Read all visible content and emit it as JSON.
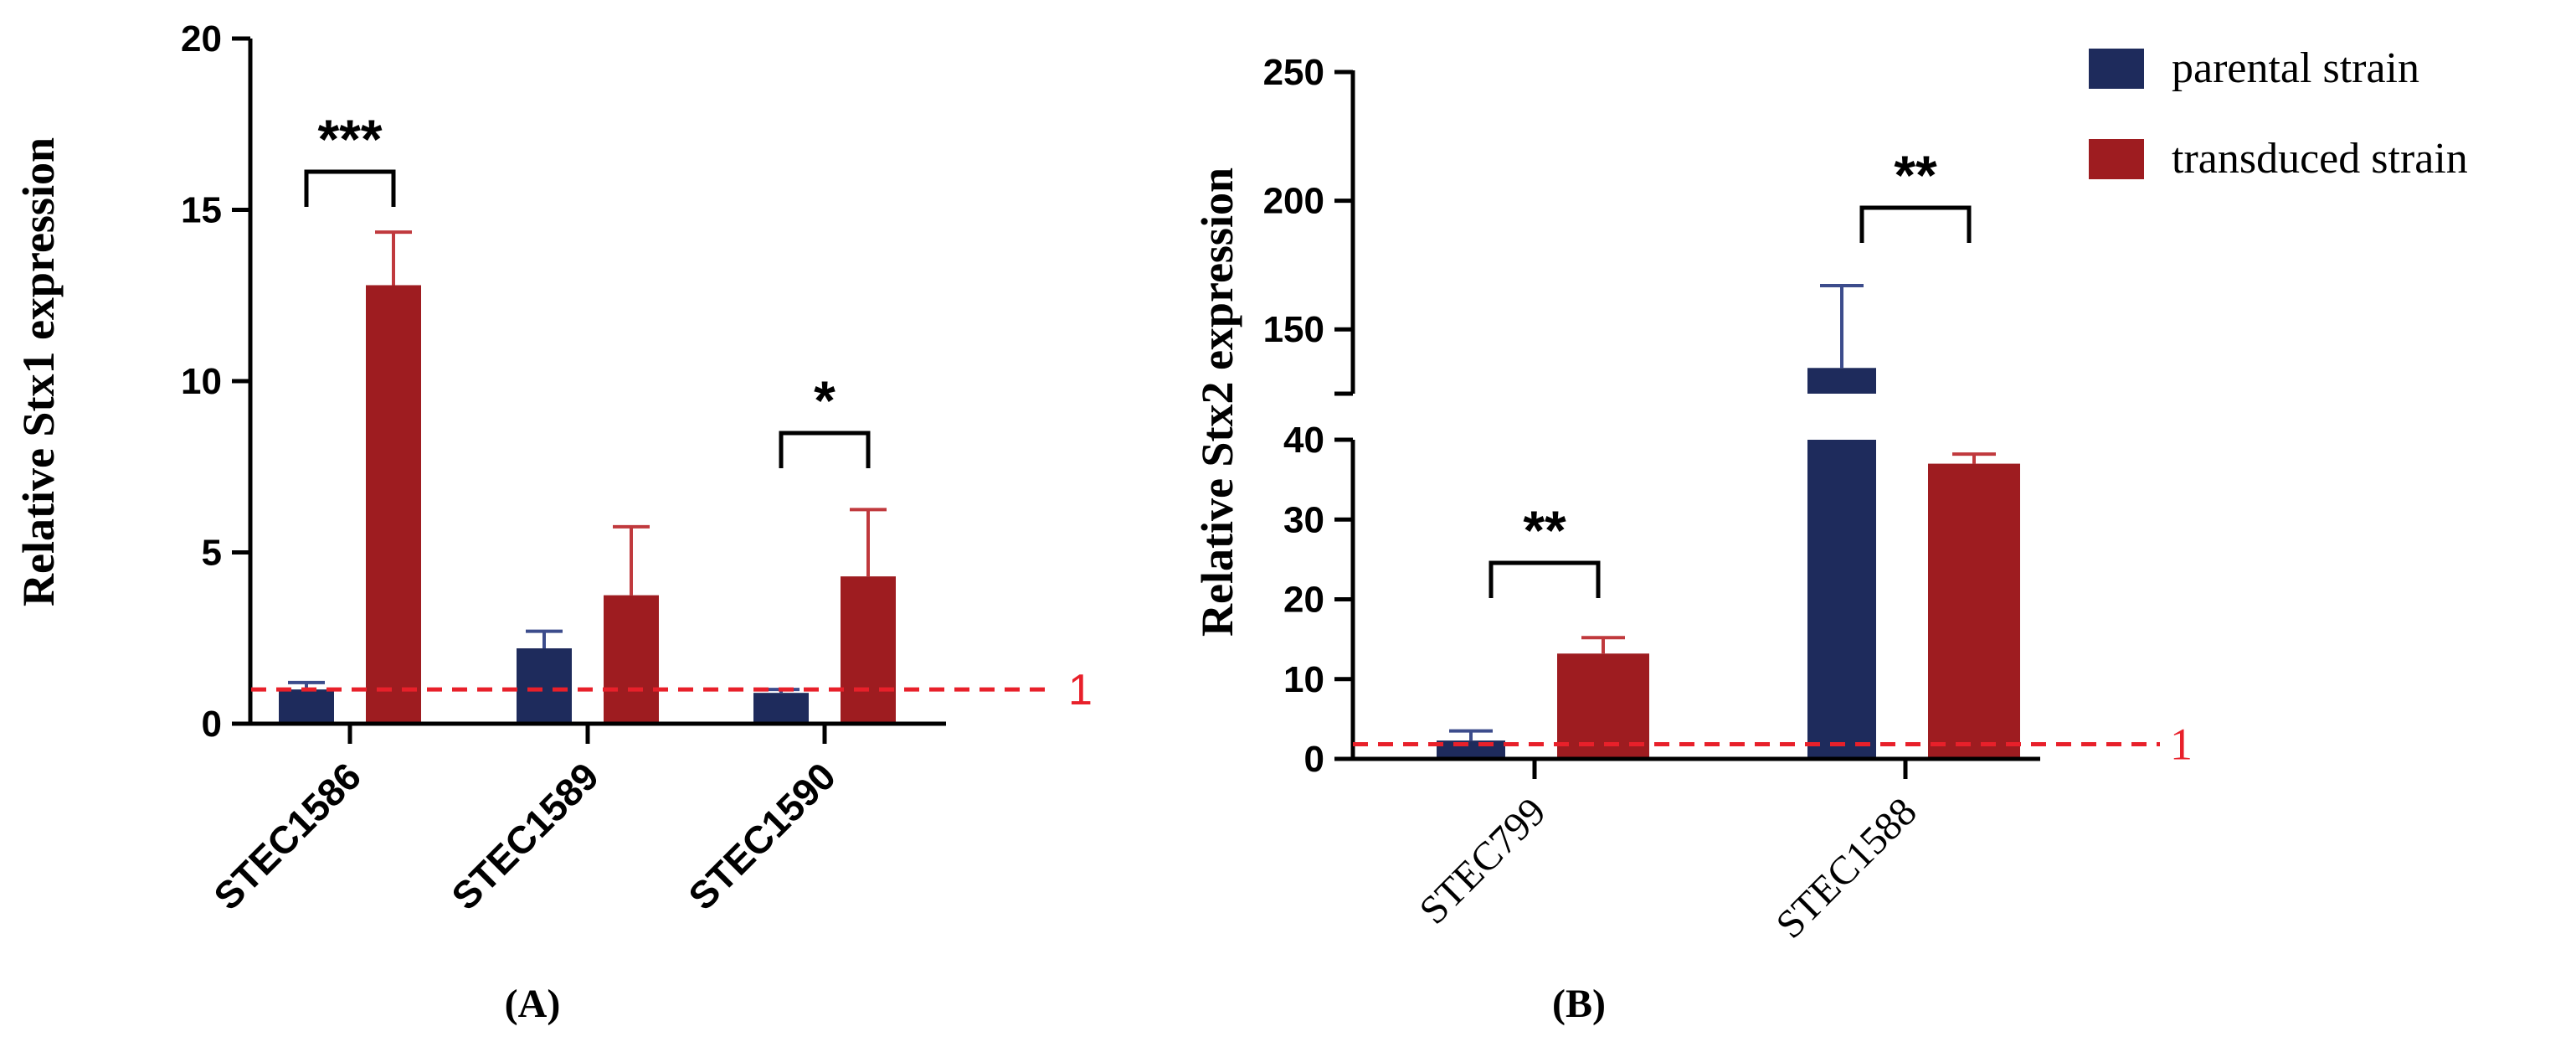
{
  "colors": {
    "parental": "#1e2b5c",
    "transduced": "#9e1c20",
    "parental_err": "#3c4c8c",
    "transduced_err": "#c0393d",
    "reference": "#e8202a"
  },
  "legend": {
    "items": [
      {
        "label": "parental strain",
        "color_key": "parental"
      },
      {
        "label": "transduced strain",
        "color_key": "transduced"
      }
    ]
  },
  "chart_data": [
    {
      "panel": "(A)",
      "type": "bar",
      "ylabel": "Relative Stx1 expression",
      "xlabel": "",
      "ylim": [
        0,
        20
      ],
      "yticks": [
        "0",
        "5",
        "10",
        "15",
        "20"
      ],
      "categories": [
        "STEC1586",
        "STEC1589",
        "STEC1590"
      ],
      "series": [
        {
          "name": "parental strain",
          "values": [
            1.0,
            2.2,
            0.9
          ],
          "errors": [
            0.2,
            0.5,
            0.1
          ]
        },
        {
          "name": "transduced strain",
          "values": [
            12.8,
            3.75,
            4.3
          ],
          "errors": [
            1.55,
            2.0,
            1.95
          ]
        }
      ],
      "reference_line": {
        "value": 1,
        "label": "1"
      },
      "significance": [
        {
          "category_index": 0,
          "label": "***"
        },
        {
          "category_index": 2,
          "label": "*"
        }
      ]
    },
    {
      "panel": "(B)",
      "type": "bar",
      "ylabel": "Relative Stx2 expression",
      "xlabel": "",
      "ylim": [
        0,
        250
      ],
      "axis_break": [
        40,
        125
      ],
      "yticks": [
        "0",
        "10",
        "20",
        "30",
        "40",
        "150",
        "200",
        "250"
      ],
      "categories": [
        "STEC799",
        "STEC1588"
      ],
      "series": [
        {
          "name": "parental strain",
          "values": [
            2.3,
            135
          ],
          "errors": [
            1.2,
            32
          ]
        },
        {
          "name": "transduced strain",
          "values": [
            13.2,
            37
          ],
          "errors": [
            2.0,
            1.2
          ]
        }
      ],
      "reference_line": {
        "value": 1,
        "label": "1"
      },
      "significance": [
        {
          "category_index": 0,
          "label": "**"
        },
        {
          "category_index": 1,
          "label": "**"
        }
      ]
    }
  ]
}
